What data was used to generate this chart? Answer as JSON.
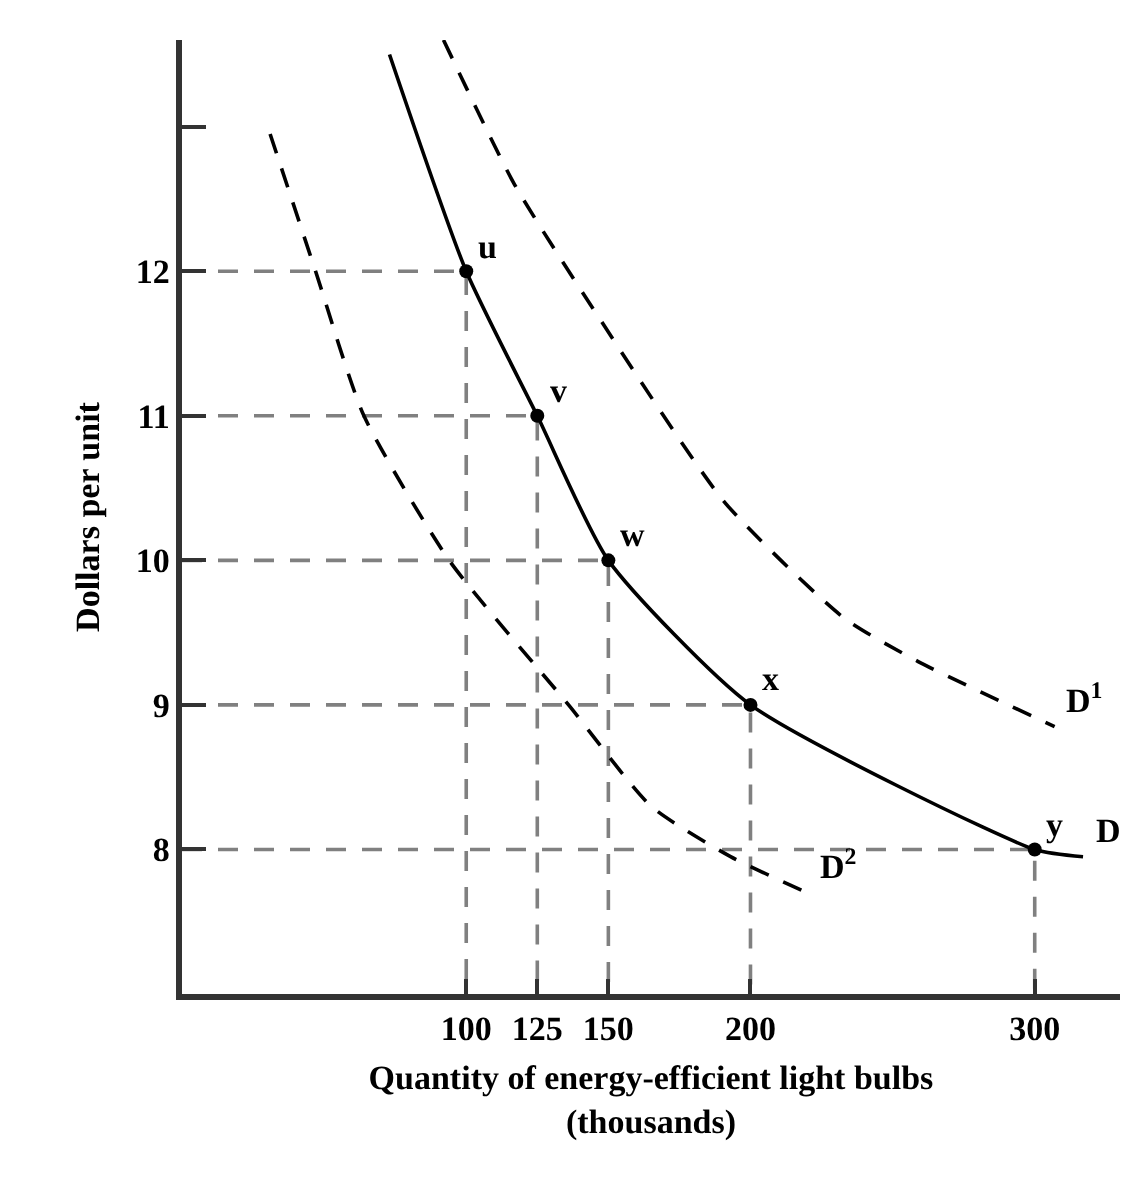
{
  "chart_data": {
    "type": "line",
    "xlabel": "Quantity of energy-efficient light bulbs\n(thousands)",
    "ylabel": "Dollars per unit",
    "xlim": [
      0,
      330
    ],
    "ylim": [
      7,
      13.6
    ],
    "xticks": [
      100,
      125,
      150,
      200,
      300
    ],
    "yticks": [
      8,
      9,
      10,
      11,
      12,
      {
        "value": 13,
        "label": null
      }
    ],
    "legend": false,
    "series": [
      {
        "color": "#808080",
        "line_style": "dashed",
        "marker": "none",
        "x": [
          0,
          100,
          100
        ],
        "values": [
          12,
          12,
          7
        ]
      },
      {
        "color": "#808080",
        "line_style": "dashed",
        "marker": "none",
        "x": [
          0,
          125,
          125
        ],
        "values": [
          11,
          11,
          7
        ]
      },
      {
        "color": "#808080",
        "line_style": "dashed",
        "marker": "none",
        "x": [
          0,
          150,
          150
        ],
        "values": [
          10,
          10,
          7
        ]
      },
      {
        "color": "#808080",
        "line_style": "dashed",
        "marker": "none",
        "x": [
          0,
          200,
          200
        ],
        "values": [
          9,
          9,
          7
        ]
      },
      {
        "color": "#808080",
        "line_style": "dashed",
        "marker": "none",
        "x": [
          0,
          300,
          300
        ],
        "values": [
          8,
          8,
          7
        ]
      },
      {
        "color": "#000000",
        "line_style": "dashed",
        "marker": "none",
        "x": [
          92,
          117,
          146,
          191,
          233,
          259,
          307
        ],
        "values": [
          13.6,
          12.6,
          11.7,
          10.4,
          9.6,
          9.3,
          8.85
        ]
      },
      {
        "color": "#000000",
        "line_style": "dashed",
        "marker": "none",
        "x": [
          31,
          47,
          64,
          94,
          136,
          165,
          193,
          220
        ],
        "values": [
          12.95,
          12,
          11,
          10,
          9,
          8.3,
          7.95,
          7.7
        ]
      },
      {
        "color": "#000000",
        "line_style": "solid",
        "marker": "none",
        "x": [
          73,
          100,
          125,
          150,
          200,
          300,
          317
        ],
        "values": [
          13.5,
          12,
          11,
          10,
          9,
          8,
          7.95
        ]
      },
      {
        "type": "scatter",
        "color": "#000000",
        "marker": "circle",
        "x": [
          100,
          125,
          150,
          200,
          300
        ],
        "values": [
          12,
          11,
          10,
          9,
          8
        ]
      }
    ],
    "annotations": [
      {
        "text": "u",
        "x": 100,
        "y": 12
      },
      {
        "text": "v",
        "x": 125,
        "y": 11
      },
      {
        "text": "w",
        "x": 150,
        "y": 10
      },
      {
        "text": "x",
        "x": 200,
        "y": 9
      },
      {
        "text": "y",
        "x": 300,
        "y": 8
      },
      {
        "text": "D$^{1}$",
        "x": 307,
        "y": 8.85
      },
      {
        "text": "D$^{2}$",
        "x": 220,
        "y": 7.7
      },
      {
        "text": "D",
        "x": 317,
        "y": 7.95
      }
    ]
  }
}
